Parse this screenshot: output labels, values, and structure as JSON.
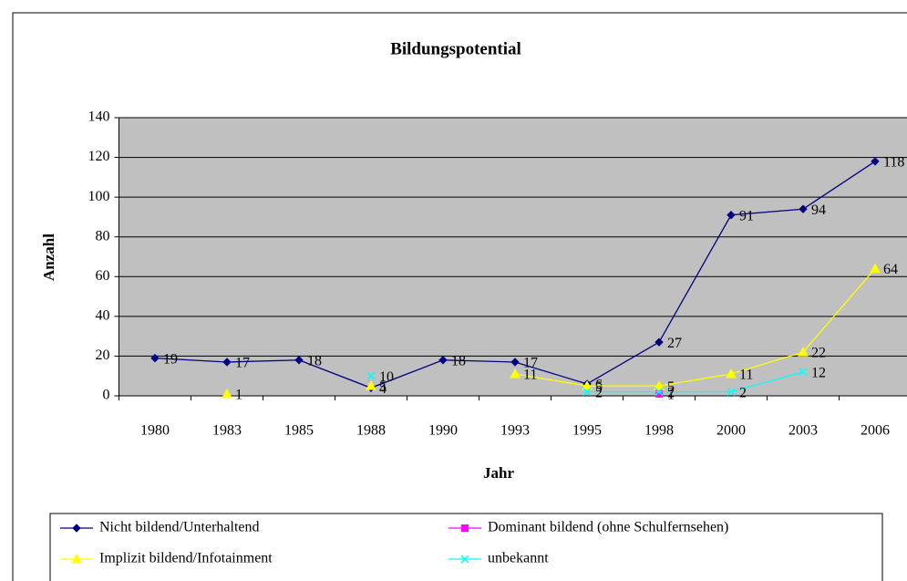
{
  "chart_data": {
    "type": "line",
    "title": "Bildungspotential",
    "x_label": "Jahr",
    "y_label": "Anzahl",
    "categories": [
      "1980",
      "1983",
      "1985",
      "1988",
      "1990",
      "1993",
      "1995",
      "1998",
      "2000",
      "2003",
      "2006"
    ],
    "series": [
      {
        "name": "Nicht bildend/Unterhaltend",
        "color": "#000080",
        "marker": "diamond",
        "values": [
          19,
          17,
          18,
          4,
          18,
          17,
          6,
          27,
          91,
          94,
          118
        ]
      },
      {
        "name": "Dominant bildend (ohne Schulfernsehen)",
        "color": "#ff00ff",
        "marker": "square",
        "values": [
          null,
          null,
          null,
          null,
          null,
          null,
          null,
          1,
          null,
          null,
          null
        ]
      },
      {
        "name": "Implizit bildend/Infotainment",
        "color": "#ffff00",
        "marker": "triangle",
        "values": [
          null,
          1,
          null,
          5,
          null,
          11,
          5,
          5,
          11,
          22,
          64
        ]
      },
      {
        "name": "unbekannt",
        "color": "#00ffff",
        "marker": "x",
        "values": [
          null,
          null,
          null,
          10,
          null,
          null,
          2,
          2,
          2,
          12,
          null
        ]
      }
    ],
    "ylim": [
      0,
      140
    ],
    "yticks": [
      0,
      20,
      40,
      60,
      80,
      100,
      120,
      140
    ],
    "grid": true,
    "plot_background": "#c0c0c0"
  }
}
